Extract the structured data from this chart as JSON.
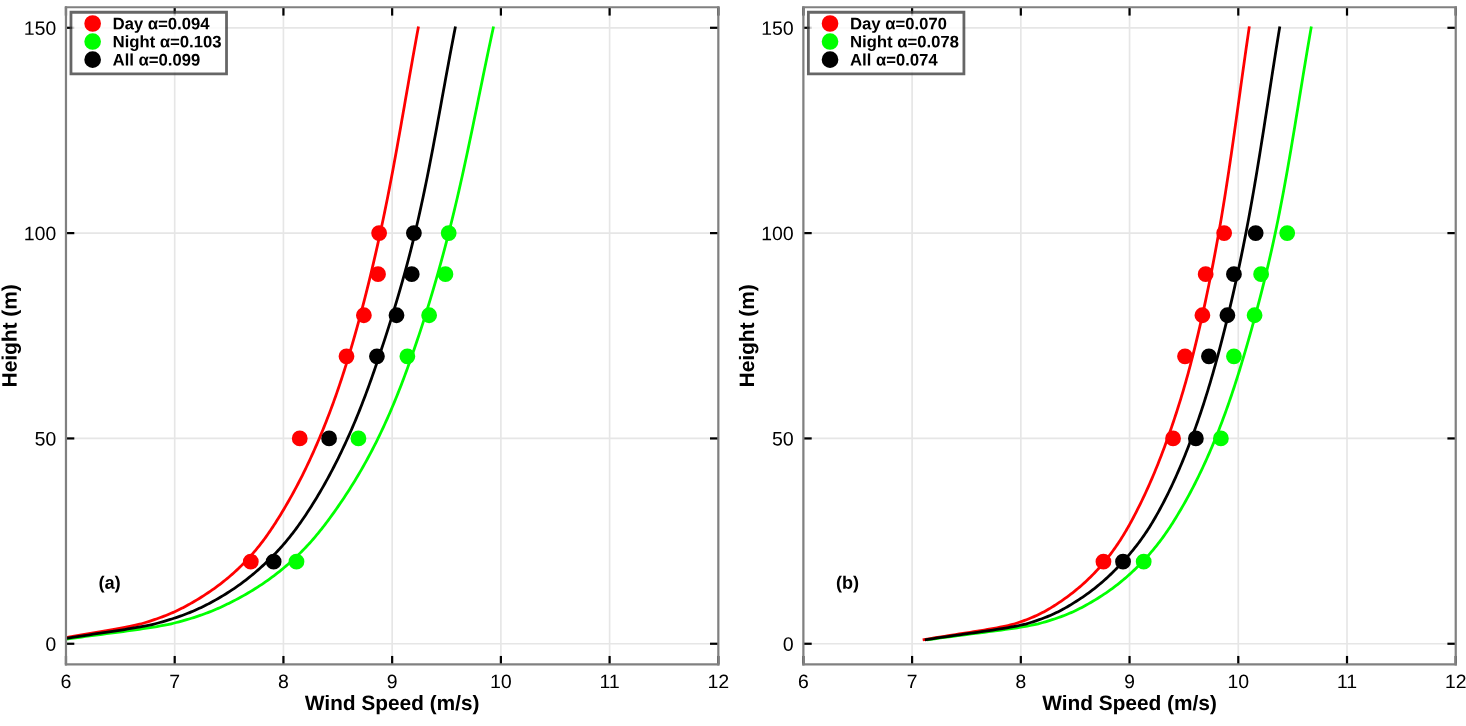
{
  "chart_data": [
    {
      "type": "scatter",
      "xlabel": "Wind Speed (m/s)",
      "ylabel": "Height (m)",
      "xlim": [
        6,
        12
      ],
      "ylim": [
        -5,
        155
      ],
      "xticks": [
        6,
        7,
        8,
        9,
        10,
        11,
        12
      ],
      "yticks": [
        0,
        50,
        100,
        150
      ],
      "grid": true,
      "legend": "top left",
      "annotations": [
        "(a)"
      ],
      "series": [
        {
          "name": "Day α=0.094",
          "marker": "circle",
          "color": "#ff0000",
          "x": [
            7.7,
            8.15,
            8.58,
            8.74,
            8.87,
            8.88
          ],
          "values": [
            20,
            50,
            70,
            80,
            90,
            100
          ]
        },
        {
          "name": "Night α=0.103",
          "marker": "circle",
          "color": "#00ff00",
          "x": [
            8.12,
            8.69,
            9.14,
            9.34,
            9.49,
            9.52
          ],
          "values": [
            20,
            50,
            70,
            80,
            90,
            100
          ]
        },
        {
          "name": "All α=0.099",
          "marker": "circle",
          "color": "#000000",
          "x": [
            7.91,
            8.42,
            8.86,
            9.04,
            9.18,
            9.2
          ],
          "values": [
            20,
            50,
            70,
            80,
            90,
            100
          ]
        },
        {
          "type": "line",
          "color": "#ff0000",
          "x": [
            6.0,
            6.71,
            7.16,
            7.65,
            7.94,
            8.33,
            8.6,
            8.89,
            9.24
          ],
          "values": [
            1.5,
            5,
            10,
            20,
            30,
            50,
            70,
            100,
            150
          ]
        },
        {
          "type": "line",
          "color": "#00ff00",
          "x": [
            6.0,
            6.99,
            7.51,
            8.07,
            8.41,
            8.87,
            9.18,
            9.52,
            9.93
          ],
          "values": [
            1.1,
            5,
            10,
            20,
            30,
            50,
            70,
            100,
            150
          ]
        },
        {
          "type": "line",
          "color": "#000000",
          "x": [
            6.0,
            6.84,
            7.33,
            7.85,
            8.17,
            8.59,
            8.88,
            9.21,
            9.58
          ],
          "values": [
            1.3,
            5,
            10,
            20,
            30,
            50,
            70,
            100,
            150
          ]
        }
      ]
    },
    {
      "type": "scatter",
      "xlabel": "Wind Speed (m/s)",
      "ylabel": "Height (m)",
      "xlim": [
        6,
        12
      ],
      "ylim": [
        -5,
        155
      ],
      "xticks": [
        6,
        7,
        8,
        9,
        10,
        11,
        12
      ],
      "yticks": [
        0,
        50,
        100,
        150
      ],
      "grid": true,
      "legend": "top left",
      "annotations": [
        "(b)"
      ],
      "series": [
        {
          "name": "Day α=0.070",
          "marker": "circle",
          "color": "#ff0000",
          "x": [
            8.76,
            9.4,
            9.51,
            9.67,
            9.7,
            9.87
          ],
          "values": [
            20,
            50,
            70,
            80,
            90,
            100
          ]
        },
        {
          "name": "Night α=0.078",
          "marker": "circle",
          "color": "#00ff00",
          "x": [
            9.13,
            9.84,
            9.96,
            10.15,
            10.21,
            10.45
          ],
          "values": [
            20,
            50,
            70,
            80,
            90,
            100
          ]
        },
        {
          "name": "All α=0.074",
          "marker": "circle",
          "color": "#000000",
          "x": [
            8.94,
            9.61,
            9.73,
            9.9,
            9.96,
            10.16
          ],
          "values": [
            20,
            50,
            70,
            80,
            90,
            100
          ]
        },
        {
          "type": "line",
          "color": "#ff0000",
          "x": [
            7.11,
            7.96,
            8.35,
            8.77,
            9.02,
            9.35,
            9.58,
            9.82,
            10.1
          ],
          "values": [
            1,
            5,
            10,
            20,
            30,
            50,
            70,
            100,
            150
          ]
        },
        {
          "type": "line",
          "color": "#00ff00",
          "x": [
            7.15,
            8.18,
            8.64,
            9.12,
            9.41,
            9.79,
            10.05,
            10.34,
            10.67
          ],
          "values": [
            1,
            5,
            10,
            20,
            30,
            50,
            70,
            100,
            150
          ]
        },
        {
          "type": "line",
          "color": "#000000",
          "x": [
            7.13,
            8.07,
            8.49,
            8.94,
            9.22,
            9.57,
            9.81,
            10.07,
            10.38
          ],
          "values": [
            1,
            5,
            10,
            20,
            30,
            50,
            70,
            100,
            150
          ]
        }
      ]
    }
  ]
}
